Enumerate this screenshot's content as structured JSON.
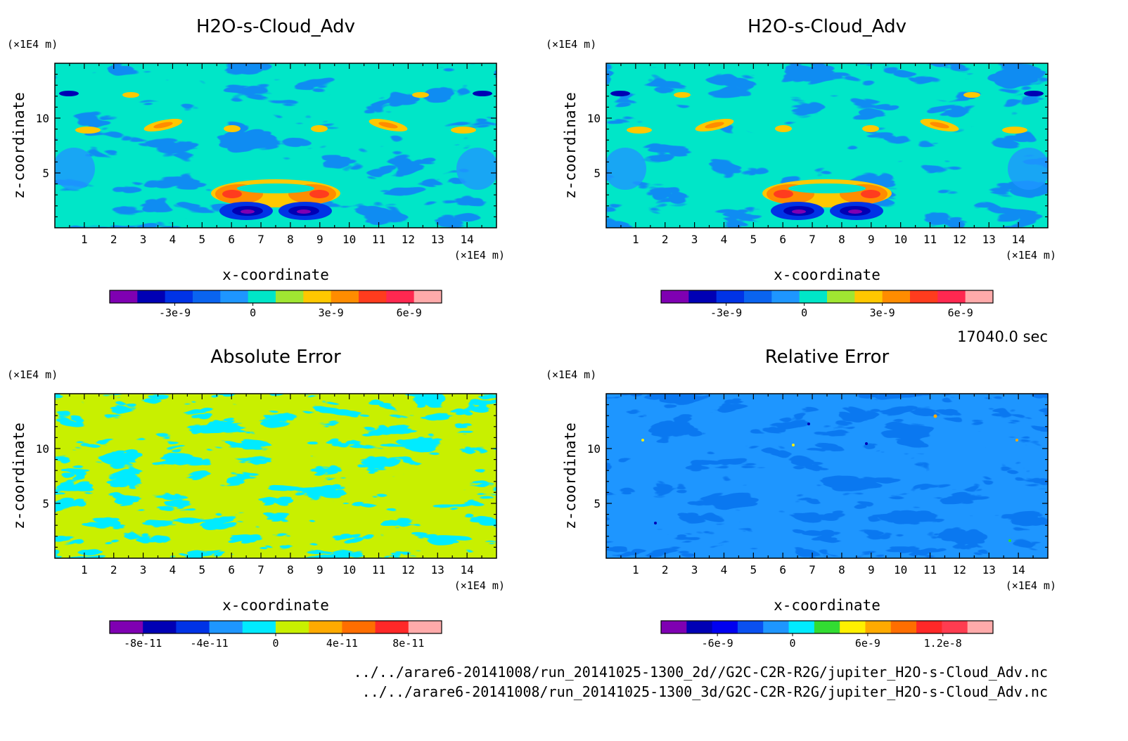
{
  "chart_data": [
    {
      "type": "heatmap",
      "title": "H2O-s-Cloud_Adv",
      "xlabel": "x-coordinate",
      "ylabel": "z-coordinate",
      "x_unit": "(×1E4 m)",
      "y_unit": "(×1E4 m)",
      "x_ticks": [
        1,
        2,
        3,
        4,
        5,
        6,
        7,
        8,
        9,
        10,
        11,
        12,
        13,
        14
      ],
      "y_ticks": [
        5,
        10
      ],
      "xlim": [
        0,
        15
      ],
      "ylim": [
        0,
        15
      ],
      "colorbar": {
        "colors": [
          "#7f00b2",
          "#0000b4",
          "#0033e6",
          "#0a64f0",
          "#1e96ff",
          "#00e6c8",
          "#a0e632",
          "#ffc800",
          "#ff8c00",
          "#ff3c1e",
          "#ff2850",
          "#ffaaaa"
        ],
        "tick_labels": [
          "-3e-9",
          "0",
          "3e-9",
          "6e-9"
        ],
        "tick_values": [
          -3e-09,
          0,
          3e-09,
          6e-09
        ],
        "range": [
          -5.5e-09,
          7.25e-09
        ]
      }
    },
    {
      "type": "heatmap",
      "title": "H2O-s-Cloud_Adv",
      "xlabel": "x-coordinate",
      "ylabel": "z-coordinate",
      "x_unit": "(×1E4 m)",
      "y_unit": "(×1E4 m)",
      "x_ticks": [
        1,
        2,
        3,
        4,
        5,
        6,
        7,
        8,
        9,
        10,
        11,
        12,
        13,
        14
      ],
      "y_ticks": [
        5,
        10
      ],
      "xlim": [
        0,
        15
      ],
      "ylim": [
        0,
        15
      ],
      "colorbar": {
        "colors": [
          "#7f00b2",
          "#0000b4",
          "#0033e6",
          "#0a64f0",
          "#1e96ff",
          "#00e6c8",
          "#a0e632",
          "#ffc800",
          "#ff8c00",
          "#ff3c1e",
          "#ff2850",
          "#ffaaaa"
        ],
        "tick_labels": [
          "-3e-9",
          "0",
          "3e-9",
          "6e-9"
        ],
        "tick_values": [
          -3e-09,
          0,
          3e-09,
          6e-09
        ],
        "range": [
          -5.5e-09,
          7.25e-09
        ]
      }
    },
    {
      "type": "heatmap",
      "title": "Absolute Error",
      "xlabel": "x-coordinate",
      "ylabel": "z-coordinate",
      "x_unit": "(×1E4 m)",
      "y_unit": "(×1E4 m)",
      "x_ticks": [
        1,
        2,
        3,
        4,
        5,
        6,
        7,
        8,
        9,
        10,
        11,
        12,
        13,
        14
      ],
      "y_ticks": [
        5,
        10
      ],
      "xlim": [
        0,
        15
      ],
      "ylim": [
        0,
        15
      ],
      "colorbar": {
        "colors": [
          "#7f00b2",
          "#0000b4",
          "#0033e6",
          "#1e96ff",
          "#00ebff",
          "#c8f000",
          "#ffaa00",
          "#ff6e00",
          "#ff2828",
          "#ffaaaa"
        ],
        "tick_labels": [
          "-8e-11",
          "-4e-11",
          "0",
          "4e-11",
          "8e-11"
        ],
        "tick_values": [
          -8e-11,
          -4e-11,
          0,
          4e-11,
          8e-11
        ],
        "range": [
          -1e-10,
          1e-10
        ]
      }
    },
    {
      "type": "heatmap",
      "title": "Relative Error",
      "xlabel": "x-coordinate",
      "ylabel": "z-coordinate",
      "x_unit": "(×1E4 m)",
      "y_unit": "(×1E4 m)",
      "x_ticks": [
        1,
        2,
        3,
        4,
        5,
        6,
        7,
        8,
        9,
        10,
        11,
        12,
        13,
        14
      ],
      "y_ticks": [
        5,
        10
      ],
      "xlim": [
        0,
        15
      ],
      "ylim": [
        0,
        15
      ],
      "colorbar": {
        "colors": [
          "#7f00b2",
          "#0000b4",
          "#0000f0",
          "#0a50f0",
          "#1e96ff",
          "#00ebff",
          "#32dc32",
          "#fff000",
          "#ffaa00",
          "#ff6e00",
          "#ff2828",
          "#ff3c50",
          "#ffaaaa"
        ],
        "tick_labels": [
          "-6e-9",
          "0",
          "6e-9",
          "1.2e-8"
        ],
        "tick_values": [
          -6e-09,
          0,
          6e-09,
          1.2e-08
        ],
        "range": [
          -1.05e-08,
          1.6e-08
        ]
      }
    }
  ],
  "time_label": "17040.0 sec",
  "footer": [
    "../../arare6-20141008/run_20141025-1300_2d//G2C-C2R-R2G/jupiter_H2O-s-Cloud_Adv.nc",
    "../../arare6-20141008/run_20141025-1300_3d/G2C-C2R-R2G/jupiter_H2O-s-Cloud_Adv.nc"
  ]
}
